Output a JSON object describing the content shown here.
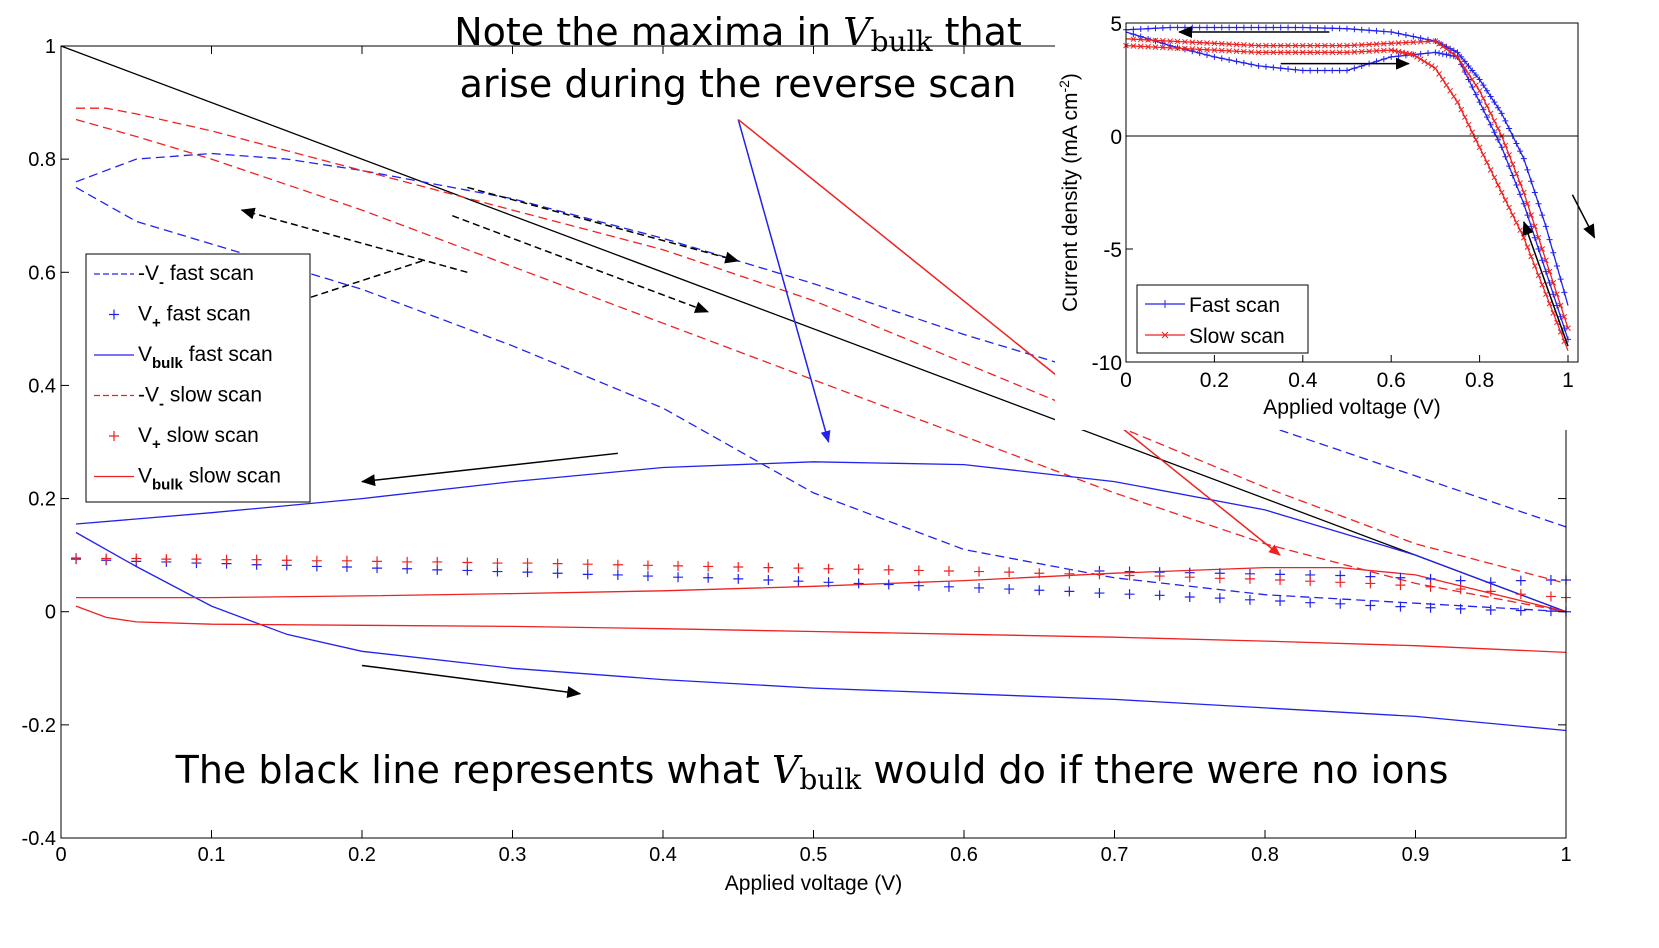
{
  "chart_data": [
    {
      "type": "line",
      "xlabel": "Applied voltage (V)",
      "ylabel": "",
      "xlim": [
        0,
        1
      ],
      "ylim": [
        -0.4,
        1
      ],
      "xticks": [
        "0",
        "0.1",
        "0.2",
        "0.3",
        "0.4",
        "0.5",
        "0.6",
        "0.7",
        "0.8",
        "0.9",
        "1"
      ],
      "yticks": [
        "-0.4",
        "-0.2",
        "0",
        "0.2",
        "0.4",
        "0.6",
        "0.8",
        "1"
      ],
      "grid": false,
      "legend_position": "middle-left",
      "annotations": {
        "top_line1_pre": "Note the maxima in ",
        "top_var": "V",
        "top_sub": "bulk",
        "top_line1_post": " that",
        "top_line2": "arise during the reverse scan",
        "bottom_pre": "The black line represents what ",
        "bottom_var": "V",
        "bottom_sub": "bulk",
        "bottom_post": " would do if there were no ions"
      },
      "legend": [
        {
          "pre": "-V",
          "sub": "-",
          "post": " fast scan"
        },
        {
          "pre": "V",
          "sub": "+",
          "post": " fast scan"
        },
        {
          "pre": "V",
          "sub": "bulk",
          "post": " fast scan"
        },
        {
          "pre": "-V",
          "sub": "-",
          "post": " slow scan"
        },
        {
          "pre": "V",
          "sub": "+",
          "post": " slow scan"
        },
        {
          "pre": "V",
          "sub": "bulk",
          "post": " slow scan"
        }
      ],
      "colors": {
        "fast": "#2222ee",
        "slow": "#ee2222",
        "reference": "#000000"
      },
      "series": [
        {
          "id": "reference",
          "style": "solid",
          "color": "#000000",
          "x": [
            0,
            1
          ],
          "y": [
            1.0,
            0.0
          ]
        },
        {
          "id": "neg_vminus_fast_upper",
          "style": "dashed",
          "color": "#2222ee",
          "x": [
            0.01,
            0.05,
            0.1,
            0.15,
            0.2,
            0.3,
            0.4,
            0.5,
            0.6,
            0.7,
            0.8,
            0.9,
            1.0
          ],
          "y": [
            0.76,
            0.8,
            0.81,
            0.8,
            0.78,
            0.73,
            0.66,
            0.58,
            0.49,
            0.41,
            0.33,
            0.24,
            0.15
          ]
        },
        {
          "id": "neg_vminus_fast_lower",
          "style": "dashed",
          "color": "#2222ee",
          "x": [
            0.01,
            0.05,
            0.1,
            0.15,
            0.2,
            0.3,
            0.4,
            0.5,
            0.6,
            0.7,
            0.8,
            0.9,
            1.0
          ],
          "y": [
            0.75,
            0.69,
            0.65,
            0.61,
            0.57,
            0.47,
            0.36,
            0.21,
            0.11,
            0.06,
            0.03,
            0.015,
            0.0
          ]
        },
        {
          "id": "neg_vminus_slow_upper",
          "style": "dashed",
          "color": "#ee2222",
          "x": [
            0.01,
            0.03,
            0.05,
            0.1,
            0.2,
            0.3,
            0.4,
            0.5,
            0.6,
            0.7,
            0.8,
            0.9,
            1.0
          ],
          "y": [
            0.89,
            0.89,
            0.88,
            0.85,
            0.78,
            0.71,
            0.64,
            0.55,
            0.44,
            0.33,
            0.22,
            0.12,
            0.05
          ]
        },
        {
          "id": "neg_vminus_slow_lower",
          "style": "dashed",
          "color": "#ee2222",
          "x": [
            0.01,
            0.05,
            0.1,
            0.2,
            0.3,
            0.4,
            0.5,
            0.6,
            0.7,
            0.8,
            0.9,
            1.0
          ],
          "y": [
            0.87,
            0.84,
            0.8,
            0.71,
            0.61,
            0.51,
            0.41,
            0.31,
            0.21,
            0.12,
            0.05,
            0.0
          ]
        },
        {
          "id": "vbulk_fast_reverse",
          "style": "solid",
          "color": "#2222ee",
          "x": [
            0.01,
            0.1,
            0.2,
            0.3,
            0.4,
            0.5,
            0.6,
            0.7,
            0.8,
            0.9,
            1.0
          ],
          "y": [
            0.155,
            0.175,
            0.2,
            0.23,
            0.255,
            0.265,
            0.26,
            0.23,
            0.18,
            0.1,
            0.0
          ]
        },
        {
          "id": "vbulk_fast_forward",
          "style": "solid",
          "color": "#2222ee",
          "x": [
            0.01,
            0.05,
            0.1,
            0.15,
            0.2,
            0.3,
            0.4,
            0.5,
            0.6,
            0.7,
            0.8,
            0.9,
            1.0
          ],
          "y": [
            0.14,
            0.08,
            0.01,
            -0.04,
            -0.07,
            -0.1,
            -0.12,
            -0.135,
            -0.145,
            -0.155,
            -0.17,
            -0.185,
            -0.21
          ]
        },
        {
          "id": "vbulk_slow_reverse",
          "style": "solid",
          "color": "#ee2222",
          "x": [
            0.01,
            0.1,
            0.2,
            0.3,
            0.4,
            0.5,
            0.6,
            0.7,
            0.8,
            0.85,
            0.9,
            1.0
          ],
          "y": [
            0.025,
            0.025,
            0.028,
            0.032,
            0.037,
            0.045,
            0.055,
            0.068,
            0.078,
            0.078,
            0.065,
            0.0
          ]
        },
        {
          "id": "vbulk_slow_forward",
          "style": "solid",
          "color": "#ee2222",
          "x": [
            0.01,
            0.03,
            0.05,
            0.1,
            0.2,
            0.3,
            0.4,
            0.5,
            0.6,
            0.7,
            0.8,
            0.9,
            1.0
          ],
          "y": [
            0.01,
            -0.01,
            -0.018,
            -0.022,
            -0.024,
            -0.026,
            -0.03,
            -0.035,
            -0.04,
            -0.045,
            -0.052,
            -0.06,
            -0.072
          ]
        },
        {
          "id": "vplus_fast",
          "style": "plus",
          "color": "#2222ee",
          "x": [
            0.01,
            0.03,
            0.05,
            0.07,
            0.09,
            0.11,
            0.13,
            0.15,
            0.17,
            0.19,
            0.21,
            0.23,
            0.25,
            0.27,
            0.29,
            0.31,
            0.33,
            0.35,
            0.37,
            0.39,
            0.41,
            0.43,
            0.45,
            0.47,
            0.49,
            0.51,
            0.53,
            0.55,
            0.57,
            0.59,
            0.61,
            0.63,
            0.65,
            0.67,
            0.69,
            0.71,
            0.73,
            0.75,
            0.77,
            0.79,
            0.81,
            0.83,
            0.85,
            0.87,
            0.89,
            0.91,
            0.93,
            0.95,
            0.97,
            0.99,
            1.0
          ],
          "y": [
            0.093,
            0.091,
            0.089,
            0.088,
            0.086,
            0.085,
            0.083,
            0.082,
            0.08,
            0.079,
            0.077,
            0.076,
            0.074,
            0.073,
            0.071,
            0.07,
            0.068,
            0.066,
            0.065,
            0.063,
            0.061,
            0.06,
            0.058,
            0.056,
            0.054,
            0.052,
            0.05,
            0.048,
            0.046,
            0.044,
            0.042,
            0.04,
            0.038,
            0.036,
            0.033,
            0.031,
            0.029,
            0.026,
            0.024,
            0.021,
            0.019,
            0.016,
            0.014,
            0.011,
            0.009,
            0.007,
            0.005,
            0.003,
            0.002,
            0.001,
            0.0
          ]
        },
        {
          "id": "vplus_fast_reverse",
          "style": "plus",
          "color": "#2222ee",
          "x": [
            0.69,
            0.71,
            0.73,
            0.75,
            0.77,
            0.79,
            0.81,
            0.83,
            0.85,
            0.87,
            0.89,
            0.91,
            0.93,
            0.95,
            0.97,
            0.99,
            1.0
          ],
          "y": [
            0.072,
            0.071,
            0.07,
            0.069,
            0.068,
            0.067,
            0.066,
            0.065,
            0.064,
            0.062,
            0.06,
            0.058,
            0.055,
            0.052,
            0.055,
            0.056,
            0.056
          ]
        },
        {
          "id": "vplus_slow",
          "style": "plus",
          "color": "#ee2222",
          "x": [
            0.01,
            0.03,
            0.05,
            0.07,
            0.09,
            0.11,
            0.13,
            0.15,
            0.17,
            0.19,
            0.21,
            0.23,
            0.25,
            0.27,
            0.29,
            0.31,
            0.33,
            0.35,
            0.37,
            0.39,
            0.41,
            0.43,
            0.45,
            0.47,
            0.49,
            0.51,
            0.53,
            0.55,
            0.57,
            0.59,
            0.61,
            0.63,
            0.65,
            0.67,
            0.69,
            0.71,
            0.73,
            0.75,
            0.77,
            0.79,
            0.81,
            0.83,
            0.85,
            0.87,
            0.89,
            0.91,
            0.93,
            0.95,
            0.97,
            0.99,
            1.0
          ],
          "y": [
            0.095,
            0.094,
            0.094,
            0.093,
            0.093,
            0.092,
            0.092,
            0.091,
            0.09,
            0.09,
            0.089,
            0.088,
            0.088,
            0.087,
            0.086,
            0.086,
            0.085,
            0.084,
            0.083,
            0.082,
            0.081,
            0.08,
            0.079,
            0.078,
            0.077,
            0.076,
            0.075,
            0.074,
            0.073,
            0.072,
            0.071,
            0.07,
            0.068,
            0.067,
            0.066,
            0.064,
            0.063,
            0.061,
            0.059,
            0.058,
            0.056,
            0.054,
            0.052,
            0.05,
            0.047,
            0.044,
            0.04,
            0.036,
            0.031,
            0.027,
            0.025
          ]
        }
      ],
      "direction_arrows": [
        {
          "from": [
            0.27,
            0.75
          ],
          "to": [
            0.45,
            0.62
          ],
          "style": "dashed"
        },
        {
          "from": [
            0.27,
            0.6
          ],
          "to": [
            0.12,
            0.71
          ],
          "style": "dashed"
        },
        {
          "from": [
            0.26,
            0.7
          ],
          "to": [
            0.43,
            0.53
          ],
          "style": "dashed"
        },
        {
          "from": [
            0.24,
            0.62
          ],
          "to": [
            0.09,
            0.49
          ],
          "style": "dashed"
        },
        {
          "from": [
            0.37,
            0.28
          ],
          "to": [
            0.2,
            0.23
          ],
          "style": "solid"
        },
        {
          "from": [
            0.2,
            -0.095
          ],
          "to": [
            0.345,
            -0.145
          ],
          "style": "solid"
        }
      ],
      "callout_arrows": [
        {
          "from": [
            0.45,
            0.87
          ],
          "to": [
            0.51,
            0.3
          ],
          "color": "#2222ee"
        },
        {
          "from": [
            0.45,
            0.87
          ],
          "to": [
            0.81,
            0.1
          ],
          "color": "#ee2222"
        }
      ]
    },
    {
      "type": "line",
      "xlabel": "Applied voltage (V)",
      "ylabel": "Current density (mA cm-2)",
      "ylabel_base": "Current density (mA cm",
      "ylabel_exp": "-2",
      "ylabel_close": ")",
      "xlim": [
        0,
        1
      ],
      "ylim": [
        -10,
        5
      ],
      "xticks": [
        "0",
        "0.2",
        "0.4",
        "0.6",
        "0.8",
        "1"
      ],
      "yticks": [
        "5",
        "0",
        "-5",
        "-10"
      ],
      "legend_position": "lower-left",
      "legend": [
        "Fast scan",
        "Slow scan"
      ],
      "series": [
        {
          "name": "Fast scan",
          "color": "#2222ee",
          "x": [
            0.0,
            0.1,
            0.2,
            0.3,
            0.4,
            0.5,
            0.6,
            0.7,
            0.75,
            0.8,
            0.85,
            0.9,
            0.95,
            1.0
          ],
          "y": [
            4.7,
            4.8,
            4.8,
            4.8,
            4.8,
            4.75,
            4.6,
            4.2,
            3.7,
            2.5,
            1.0,
            -1.0,
            -4.0,
            -7.5
          ]
        },
        {
          "name": "Fast scan",
          "color": "#2222ee",
          "x": [
            1.0,
            0.95,
            0.9,
            0.85,
            0.8,
            0.75,
            0.7,
            0.6,
            0.5,
            0.4,
            0.3,
            0.2,
            0.1,
            0.0
          ],
          "y": [
            -9.0,
            -6.0,
            -3.0,
            -0.5,
            1.5,
            3.5,
            3.7,
            3.5,
            2.9,
            2.9,
            3.1,
            3.5,
            4.0,
            4.6
          ]
        },
        {
          "name": "Slow scan",
          "color": "#ee2222",
          "x": [
            0.0,
            0.1,
            0.2,
            0.3,
            0.4,
            0.5,
            0.6,
            0.65,
            0.7,
            0.75,
            0.8,
            0.85,
            0.9,
            0.95,
            1.0
          ],
          "y": [
            4.0,
            3.9,
            3.8,
            3.7,
            3.7,
            3.7,
            3.8,
            3.6,
            3.0,
            1.5,
            -0.5,
            -2.5,
            -4.5,
            -7.0,
            -9.5
          ]
        },
        {
          "name": "Slow scan",
          "color": "#ee2222",
          "x": [
            1.0,
            0.95,
            0.9,
            0.85,
            0.8,
            0.75,
            0.7,
            0.6,
            0.5,
            0.4,
            0.3,
            0.2,
            0.1,
            0.0
          ],
          "y": [
            -8.5,
            -5.5,
            -2.5,
            0.0,
            2.0,
            3.5,
            4.2,
            4.1,
            4.0,
            4.0,
            4.0,
            4.1,
            4.2,
            4.3
          ]
        }
      ],
      "zero_line": true
    }
  ]
}
